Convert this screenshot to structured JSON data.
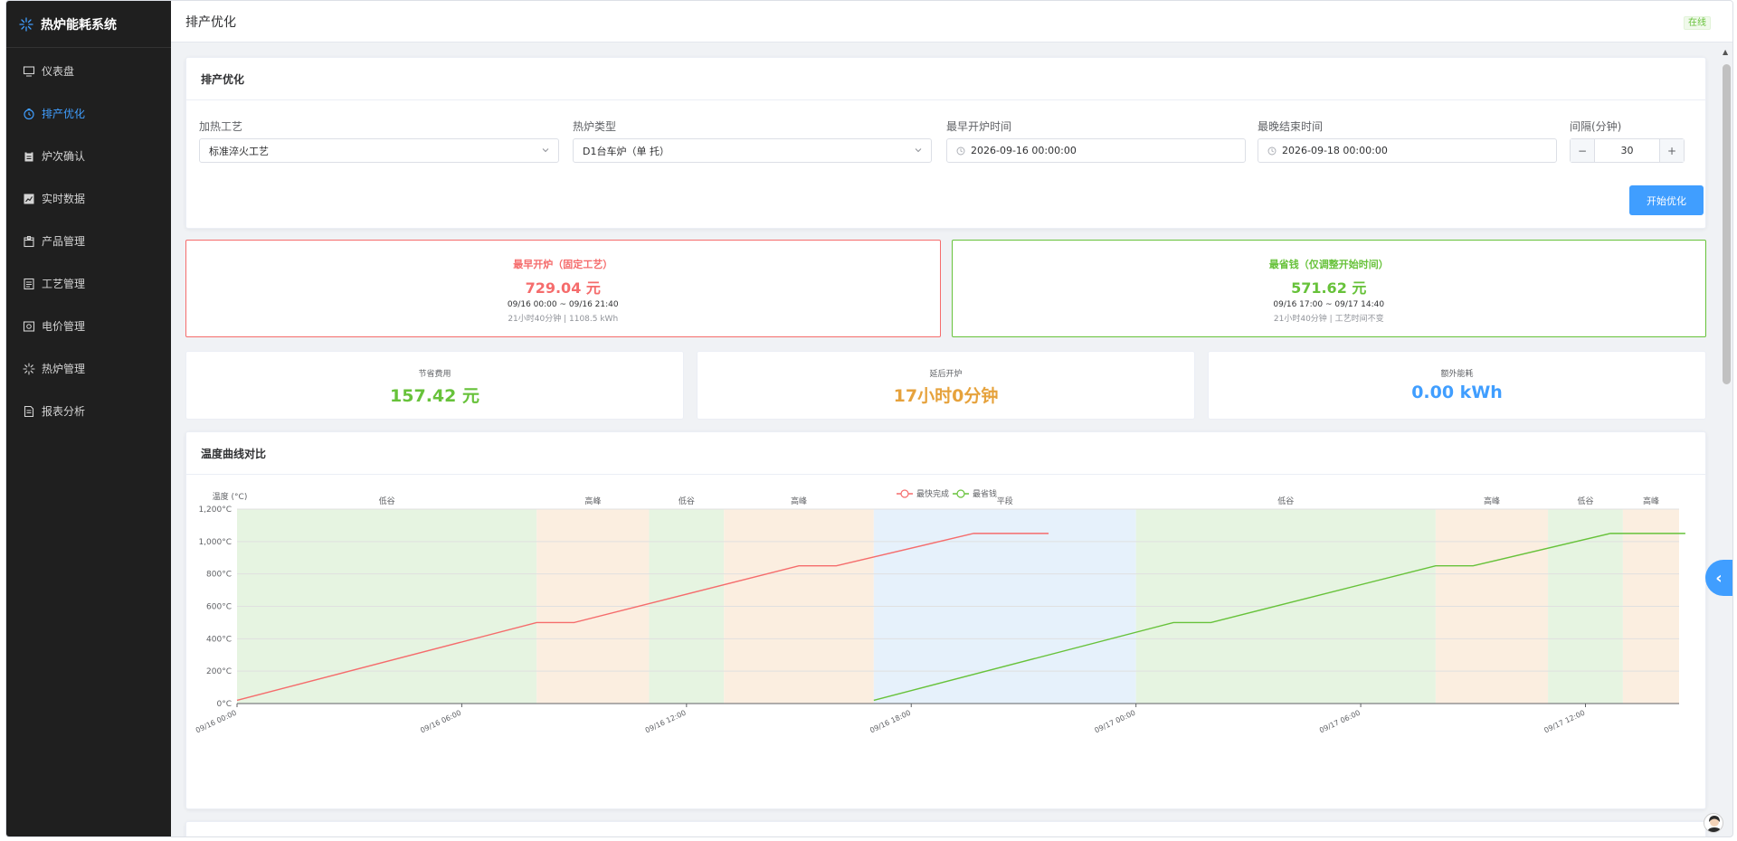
{
  "app": {
    "title": "热炉能耗系统"
  },
  "sidebar": {
    "items": [
      {
        "label": "仪表盘",
        "icon": "monitor-icon"
      },
      {
        "label": "排产优化",
        "icon": "clock-icon",
        "active": true
      },
      {
        "label": "炉次确认",
        "icon": "clipboard-icon"
      },
      {
        "label": "实时数据",
        "icon": "chart-icon"
      },
      {
        "label": "产品管理",
        "icon": "box-icon"
      },
      {
        "label": "工艺管理",
        "icon": "document-icon"
      },
      {
        "label": "电价管理",
        "icon": "price-icon"
      },
      {
        "label": "热炉管理",
        "icon": "furnace-icon"
      },
      {
        "label": "报表分析",
        "icon": "report-icon"
      }
    ]
  },
  "header": {
    "title": "排产优化",
    "status": "在线"
  },
  "form": {
    "card_title": "排产优化",
    "process_label": "加热工艺",
    "process_value": "标准淬火工艺",
    "furnace_label": "热炉类型",
    "furnace_value": "D1台车炉（单 托）",
    "earliest_label": "最早开炉时间",
    "earliest_value": "2026-09-16 00:00:00",
    "latest_label": "最晚结束时间",
    "latest_value": "2026-09-18 00:00:00",
    "interval_label": "间隔(分钟)",
    "interval_value": "30",
    "minus": "−",
    "plus": "+",
    "start_button": "开始优化"
  },
  "compare": {
    "fast": {
      "title": "最早开炉（固定工艺）",
      "amount": "729.04 元",
      "range": "09/16 00:00 ~ 09/16 21:40",
      "detail": "21小时40分钟 | 1108.5 kWh"
    },
    "cheap": {
      "title": "最省钱（仅调整开始时间）",
      "amount": "571.62 元",
      "range": "09/16 17:00 ~ 09/17 14:40",
      "detail": "21小时40分钟 | 工艺时间不变"
    }
  },
  "stats": {
    "saving_label": "节省费用",
    "saving_value": "157.42 元",
    "delay_label": "延后开炉",
    "delay_value": "17小时0分钟",
    "extra_label": "额外能耗",
    "extra_value": "0.00 kWh"
  },
  "colors": {
    "primary": "#409eff",
    "red": "#f56c6c",
    "green": "#67c23a",
    "orange": "#e6a23c"
  },
  "chart_title": "温度曲线对比",
  "chart_data": {
    "type": "line",
    "ylabel": "温度 (°C)",
    "ylim": [
      0,
      1200
    ],
    "yticks": [
      0,
      200,
      400,
      600,
      800,
      1000,
      1200
    ],
    "ytick_labels": [
      "0°C",
      "200°C",
      "400°C",
      "600°C",
      "800°C",
      "1,000°C",
      "1,200°C"
    ],
    "xlim": [
      "09/16 00:00",
      "09/17 14:30"
    ],
    "xticks": [
      "09/16 00:00",
      "09/16 06:00",
      "09/16 12:00",
      "09/16 18:00",
      "09/17 00:00",
      "09/17 06:00",
      "09/17 12:00"
    ],
    "legend": [
      "最快完成",
      "最省钱"
    ],
    "legend_position": "top-center",
    "bands": [
      {
        "label": "低谷",
        "start": "09/16 00:00",
        "end": "09/16 08:00",
        "kind": "valley"
      },
      {
        "label": "高峰",
        "start": "09/16 08:00",
        "end": "09/16 11:00",
        "kind": "peak"
      },
      {
        "label": "低谷",
        "start": "09/16 11:00",
        "end": "09/16 13:00",
        "kind": "valley"
      },
      {
        "label": "高峰",
        "start": "09/16 13:00",
        "end": "09/16 17:00",
        "kind": "peak"
      },
      {
        "label": "平段",
        "start": "09/16 17:00",
        "end": "09/17 00:00",
        "kind": "flat"
      },
      {
        "label": "低谷",
        "start": "09/17 00:00",
        "end": "09/17 08:00",
        "kind": "valley"
      },
      {
        "label": "高峰",
        "start": "09/17 08:00",
        "end": "09/17 11:00",
        "kind": "peak"
      },
      {
        "label": "低谷",
        "start": "09/17 11:00",
        "end": "09/17 13:00",
        "kind": "valley"
      },
      {
        "label": "高峰",
        "start": "09/17 13:00",
        "end": "09/17 14:30",
        "kind": "peak"
      }
    ],
    "series": [
      {
        "name": "最快完成",
        "color": "#f56c6c",
        "points": [
          [
            "09/16 00:00",
            20
          ],
          [
            "09/16 08:00",
            500
          ],
          [
            "09/16 09:00",
            500
          ],
          [
            "09/16 15:00",
            850
          ],
          [
            "09/16 16:00",
            850
          ],
          [
            "09/16 19:40",
            1050
          ],
          [
            "09/16 21:40",
            1050
          ]
        ]
      },
      {
        "name": "最省钱",
        "color": "#67c23a",
        "points": [
          [
            "09/16 17:00",
            20
          ],
          [
            "09/17 01:00",
            500
          ],
          [
            "09/17 02:00",
            500
          ],
          [
            "09/17 08:00",
            850
          ],
          [
            "09/17 09:00",
            850
          ],
          [
            "09/17 12:40",
            1050
          ],
          [
            "09/17 14:40",
            1050
          ]
        ]
      }
    ]
  }
}
